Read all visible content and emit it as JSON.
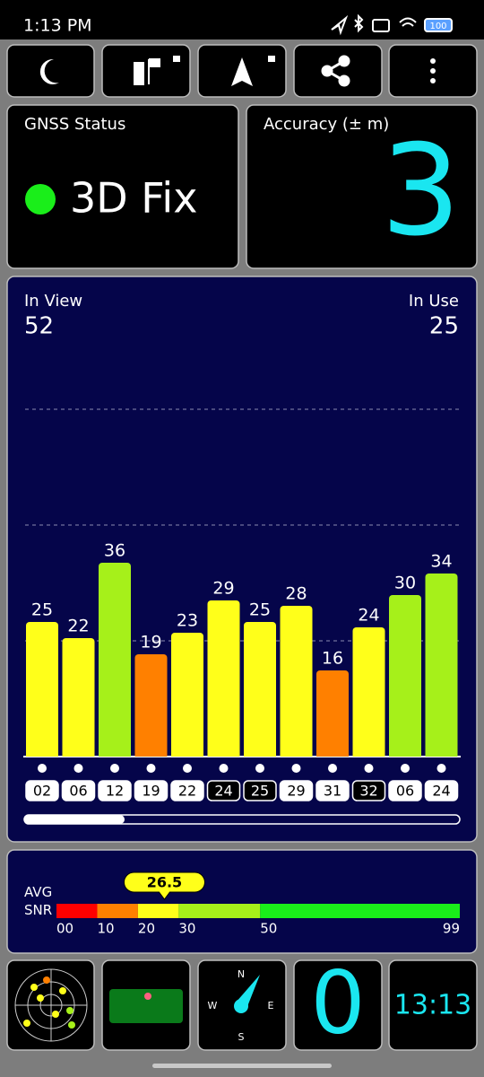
{
  "status_bar": {
    "time": "1:13 PM",
    "battery": "100"
  },
  "gnss_status": {
    "title": "GNSS Status",
    "fix": "3D Fix"
  },
  "accuracy": {
    "title": "Accuracy (± m)",
    "value": 3
  },
  "satellites": {
    "in_view_label": "In View",
    "in_view": 52,
    "in_use_label": "In Use",
    "in_use": 25,
    "chart": {
      "type": "bar",
      "categories": [
        "02",
        "06",
        "12",
        "19",
        "22",
        "24",
        "25",
        "29",
        "31",
        "32",
        "06",
        "24"
      ],
      "values": [
        25,
        22,
        36,
        19,
        23,
        29,
        25,
        28,
        16,
        24,
        30,
        34
      ],
      "colors": [
        "#ffff1a",
        "#ffff1a",
        "#a6f01a",
        "#ff8000",
        "#ffff1a",
        "#ffff1a",
        "#ffff1a",
        "#ffff1a",
        "#ff8000",
        "#ffff1a",
        "#a6f01a",
        "#a6f01a"
      ],
      "used": [
        true,
        true,
        true,
        true,
        true,
        false,
        false,
        true,
        true,
        false,
        true,
        true
      ]
    }
  },
  "snr": {
    "label": "AVG\nSNR",
    "value": 26.5,
    "ticks": [
      {
        "value": 0,
        "label": "00"
      },
      10,
      20,
      30,
      50,
      99
    ],
    "segment_colors": [
      "#ff0000",
      "#ff8000",
      "#ffff1a",
      "#a6f01a",
      "#1aee1a"
    ]
  },
  "bottom": {
    "compass": [
      "N",
      "W",
      "E",
      "S"
    ],
    "count": 0,
    "clock": "13:13"
  }
}
